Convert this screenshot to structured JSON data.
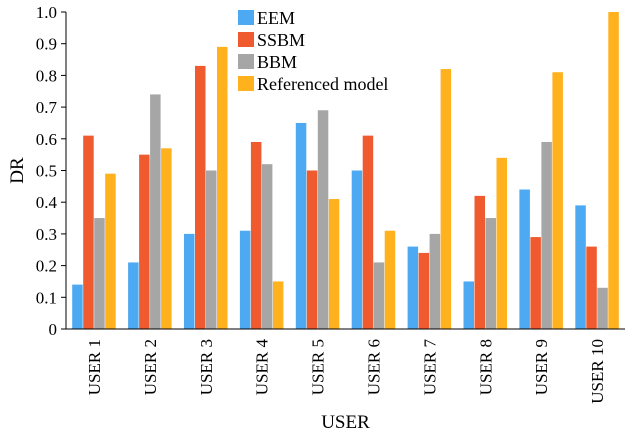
{
  "chart_data": {
    "type": "bar",
    "xlabel": "USER",
    "ylabel": "DR",
    "ylim": [
      0,
      1.0
    ],
    "yticks": [
      "0",
      "0.1",
      "0.2",
      "0.3",
      "0.4",
      "0.5",
      "0.6",
      "0.7",
      "0.8",
      "0.9",
      "1.0"
    ],
    "categories": [
      "USER 1",
      "USER 2",
      "USER 3",
      "USER 4",
      "USER 5",
      "USER 6",
      "USER 7",
      "USER 8",
      "USER 9",
      "USER 10"
    ],
    "series": [
      {
        "name": "EEM",
        "color": "#4DAAF2",
        "values": [
          0.14,
          0.21,
          0.3,
          0.31,
          0.65,
          0.5,
          0.26,
          0.15,
          0.44,
          0.39
        ]
      },
      {
        "name": "SSBM",
        "color": "#EF5A2E",
        "values": [
          0.61,
          0.55,
          0.83,
          0.59,
          0.5,
          0.61,
          0.24,
          0.42,
          0.29,
          0.26
        ]
      },
      {
        "name": "BBM",
        "color": "#A6A6A6",
        "values": [
          0.35,
          0.74,
          0.5,
          0.52,
          0.69,
          0.21,
          0.3,
          0.35,
          0.59,
          0.13
        ]
      },
      {
        "name": "Referenced model",
        "color": "#FFB11E",
        "values": [
          0.49,
          0.57,
          0.89,
          0.15,
          0.41,
          0.31,
          0.82,
          0.54,
          0.81,
          1.0
        ]
      }
    ],
    "legend_position": "top-center",
    "grid": false
  }
}
